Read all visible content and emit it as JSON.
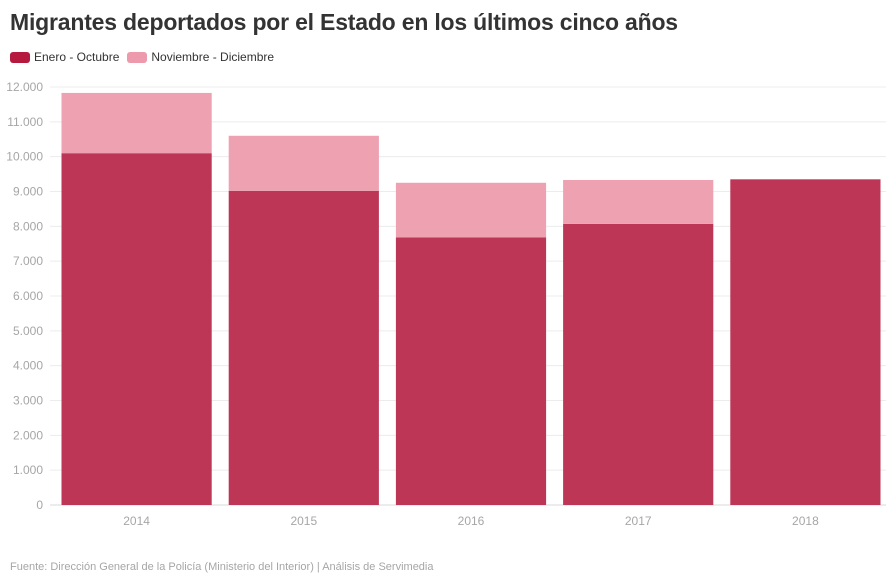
{
  "title": "Migrantes deportados por el Estado en los últimos cinco años",
  "legend": [
    {
      "label": "Enero - Octubre",
      "color": "#b5193e"
    },
    {
      "label": "Noviembre - Diciembre",
      "color": "#ec9aac"
    }
  ],
  "source": "Fuente: Dirección General de la Policía (Ministerio del Interior) | Análisis de Servimedia",
  "chart_data": {
    "type": "bar",
    "stacked": true,
    "categories": [
      "2014",
      "2015",
      "2016",
      "2017",
      "2018"
    ],
    "series": [
      {
        "name": "Enero - Octubre",
        "color": "#be3656",
        "values": [
          10100,
          9020,
          7680,
          8070,
          9350
        ]
      },
      {
        "name": "Noviembre - Diciembre",
        "color": "#eda1b1",
        "values": [
          1730,
          1580,
          1570,
          1260,
          0
        ]
      }
    ],
    "ylim": [
      0,
      12000
    ],
    "yticks": [
      0,
      1000,
      2000,
      3000,
      4000,
      5000,
      6000,
      7000,
      8000,
      9000,
      10000,
      11000,
      12000
    ],
    "ytick_labels": [
      "0",
      "1.000",
      "2.000",
      "3.000",
      "4.000",
      "5.000",
      "6.000",
      "7.000",
      "8.000",
      "9.000",
      "10.000",
      "11.000",
      "12.000"
    ],
    "grid": true,
    "legend_position": "top-left"
  }
}
